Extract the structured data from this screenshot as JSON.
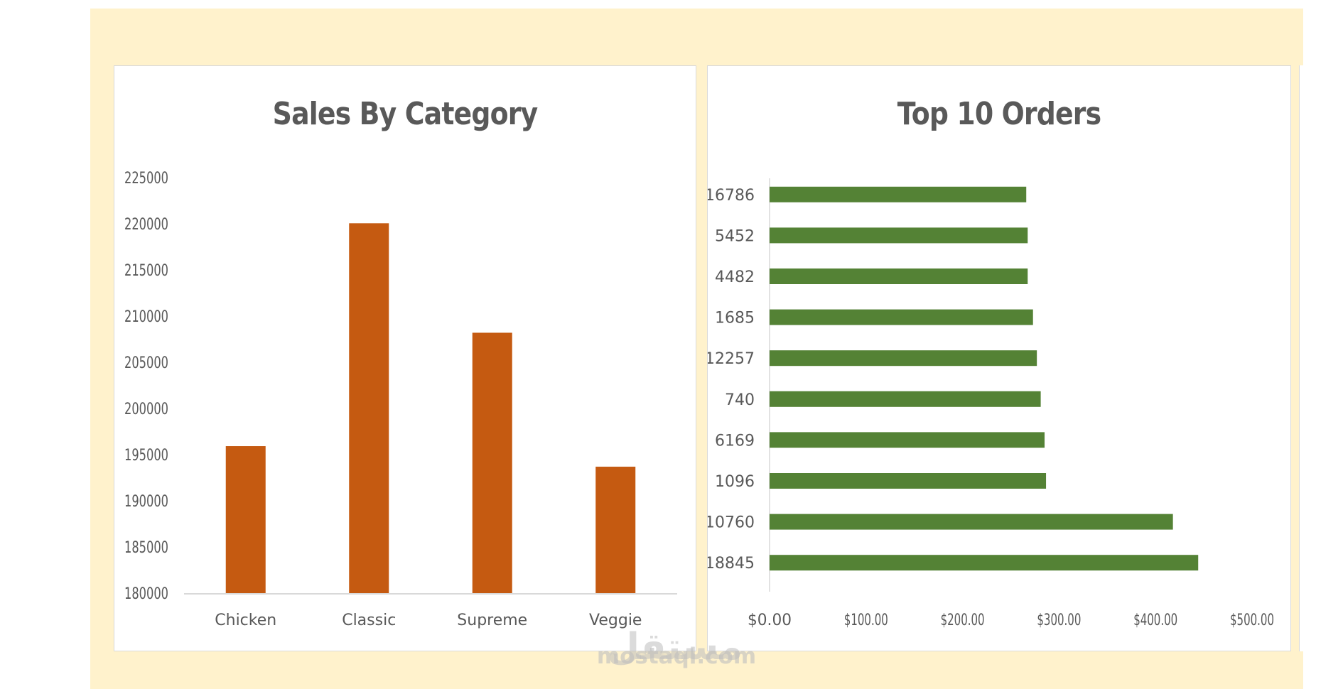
{
  "chart_data": [
    {
      "type": "bar",
      "title": "Sales By Category",
      "categories": [
        "Chicken",
        "Classic",
        "Supreme",
        "Veggie"
      ],
      "values": [
        195920,
        220053,
        208197,
        193690
      ],
      "ylim": [
        180000,
        225000
      ],
      "yticks": [
        "180000",
        "185000",
        "190000",
        "195000",
        "200000",
        "205000",
        "210000",
        "215000",
        "220000",
        "225000"
      ],
      "xlabel": "",
      "ylabel": "",
      "grid": false,
      "legend": "none",
      "color": "#c55a11"
    },
    {
      "type": "bar",
      "orientation": "horizontal",
      "title": "Top 10 Orders",
      "categories": [
        "16786",
        "5452",
        "4482",
        "1685",
        "12257",
        "740",
        "6169",
        "1096",
        "10760",
        "18845"
      ],
      "values": [
        266.0,
        267.5,
        267.5,
        273.0,
        277.0,
        281.0,
        285.0,
        286.5,
        418.0,
        444.2
      ],
      "xlim": [
        0,
        500
      ],
      "xticks": [
        "$0.00",
        "$100.00",
        "$200.00",
        "$300.00",
        "$400.00",
        "$500.00"
      ],
      "xlabel": "",
      "ylabel": "",
      "grid": false,
      "legend": "none",
      "color": "#548235"
    }
  ],
  "watermark": {
    "arabic": "مستقل",
    "latin": "mostaql.com"
  }
}
